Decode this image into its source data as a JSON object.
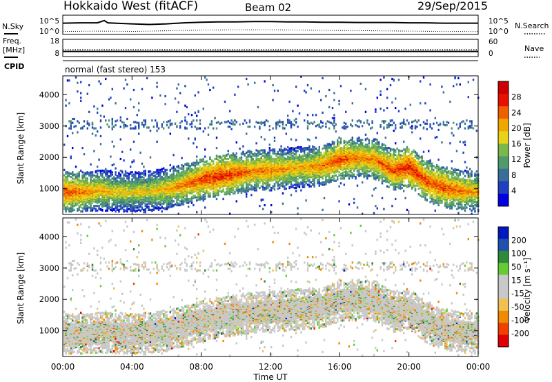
{
  "header": {
    "title": "Hokkaido West (fitACF)",
    "beam": "Beam 02",
    "date": "29/Sep/2015"
  },
  "chart_data": [
    {
      "type": "line",
      "panel": "noise",
      "left_labels": [
        "N.Sky"
      ],
      "right_labels": [
        "N.Search"
      ],
      "left_ticks": [
        "10^5",
        "10^0"
      ],
      "right_ticks": [
        "10^5",
        "10^0"
      ],
      "series": [
        {
          "name": "N.Sky",
          "style": "solid",
          "x": [
            0,
            1,
            2,
            2.4,
            2.6,
            3,
            4,
            5,
            6,
            7,
            8,
            9,
            10,
            11,
            12,
            13,
            14,
            15,
            16,
            17,
            18,
            19,
            20,
            21,
            22,
            23,
            24
          ],
          "y": [
            3.0,
            3.1,
            3.1,
            3.8,
            3.1,
            3.0,
            2.8,
            2.6,
            2.8,
            3.1,
            3.3,
            3.4,
            3.4,
            3.5,
            3.5,
            3.4,
            3.4,
            3.3,
            3.3,
            3.2,
            3.2,
            3.2,
            3.1,
            3.1,
            3.0,
            3.0,
            3.0
          ]
        },
        {
          "name": "N.Search",
          "style": "dotted",
          "x": [
            0,
            2,
            4,
            6,
            8,
            10,
            12,
            14,
            16,
            18,
            20,
            22,
            24
          ],
          "y": [
            0.5,
            0.6,
            0.5,
            0.7,
            0.9,
            1.0,
            1.0,
            0.9,
            0.8,
            0.7,
            0.6,
            0.5,
            0.5
          ]
        }
      ]
    },
    {
      "type": "line",
      "panel": "frequency",
      "left_labels": [
        "Freq.",
        "[MHz]"
      ],
      "right_labels": [
        "Nave"
      ],
      "left_ticks": [
        "18",
        "8"
      ],
      "right_ticks": [
        "60",
        "0"
      ],
      "series": [
        {
          "name": "Freq.",
          "style": "solid",
          "x": [
            0,
            24
          ],
          "y": [
            10.8,
            10.8
          ]
        },
        {
          "name": "Nave",
          "style": "dotted",
          "x": [
            0,
            24
          ],
          "y": [
            23,
            23
          ]
        }
      ]
    },
    {
      "type": "heatmap",
      "panel": "cpid",
      "label": "CPID",
      "text": "normal (fast stereo) 153"
    },
    {
      "type": "heatmap",
      "panel": "power",
      "ylabel": "Slant Range [km]",
      "ylim": [
        180,
        4600
      ],
      "yticks": [
        "4000",
        "3000",
        "2000",
        "1000"
      ],
      "colorbar_label": "Power [dB]",
      "colorbar_ticks": [
        "28",
        "24",
        "20",
        "16",
        "12",
        "8",
        "4"
      ],
      "colorscale": [
        "#0000e0",
        "#2040c0",
        "#3a6e9a",
        "#4f9a6a",
        "#79b84a",
        "#e8d21a",
        "#f0a800",
        "#f06000",
        "#e81000",
        "#cc0000"
      ],
      "bands": [
        {
          "x": [
            0,
            1,
            2,
            3,
            4,
            5,
            6,
            7,
            8,
            9,
            10,
            11,
            12,
            13,
            14,
            15,
            16,
            17,
            18,
            19,
            20,
            21,
            22,
            23,
            24
          ],
          "center_km": [
            900,
            900,
            950,
            920,
            900,
            940,
            1000,
            1150,
            1300,
            1420,
            1500,
            1580,
            1600,
            1650,
            1700,
            1750,
            1950,
            2000,
            1950,
            1600,
            1700,
            1250,
            1050,
            950,
            900
          ],
          "power_db": [
            24,
            22,
            20,
            18,
            18,
            18,
            20,
            22,
            24,
            26,
            24,
            22,
            22,
            20,
            20,
            22,
            24,
            22,
            22,
            24,
            26,
            24,
            24,
            22,
            20
          ]
        }
      ]
    },
    {
      "type": "heatmap",
      "panel": "velocity",
      "ylabel": "Slant Range [km]",
      "ylim": [
        180,
        4600
      ],
      "yticks": [
        "4000",
        "3000",
        "2000",
        "1000"
      ],
      "colorbar_label": "Velocity [m s⁻¹]",
      "colorbar_ticks": [
        "200",
        "100",
        "50",
        "15",
        "-15",
        "-50",
        "-100",
        "-200"
      ],
      "colorscale": [
        "#e00000",
        "#f04000",
        "#f08a00",
        "#f0c050",
        "#c8c8c8",
        "#c8c8c8",
        "#66cc33",
        "#2e8a3a",
        "#2050b0",
        "#0018c0"
      ],
      "xticks": [
        "00:00",
        "04:00",
        "08:00",
        "12:00",
        "16:00",
        "20:00",
        "00:00"
      ],
      "xlabel": "Time UT"
    }
  ]
}
